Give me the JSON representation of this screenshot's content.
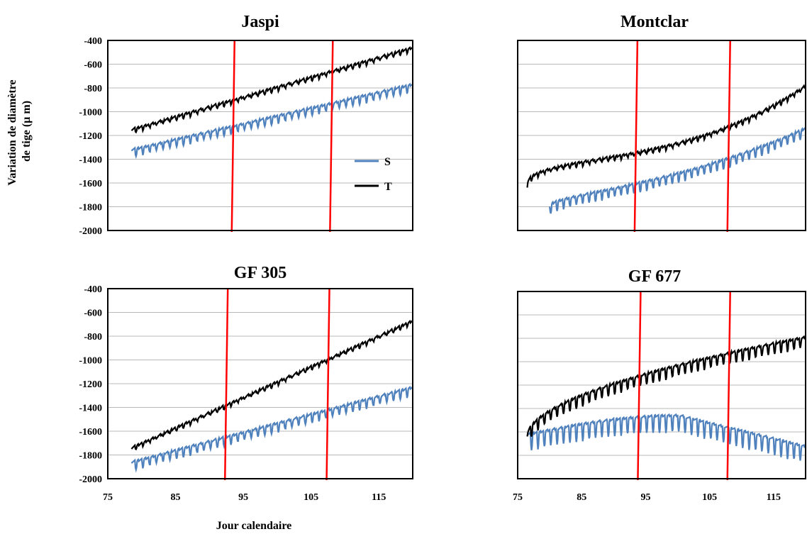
{
  "ylabel": "Variation de diamètre  de tige (µ m)",
  "xlabel": "Jour calendaire",
  "colors": {
    "S": "#4f81bd",
    "T": "#000000",
    "marker": "#ff0000"
  },
  "legend": [
    "S",
    "T"
  ],
  "chart_data": [
    {
      "type": "line",
      "title": "Jaspi",
      "xlim": [
        75,
        120
      ],
      "ylim": [
        -2000,
        -400
      ],
      "yticks": [
        -400,
        -600,
        -800,
        -1000,
        -1200,
        -1400,
        -1600,
        -1800,
        -2000
      ],
      "xticks": [],
      "show_yticks": true,
      "grid": true,
      "legend": "right",
      "vlines": [
        93.5,
        108
      ],
      "series": [
        {
          "name": "S",
          "start": [
            78.5,
            -1320
          ],
          "end": [
            120,
            -770
          ],
          "amp": 60,
          "bumps": []
        },
        {
          "name": "T",
          "start": [
            78.5,
            -1150
          ],
          "end": [
            120,
            -460
          ],
          "amp": 30,
          "bumps": []
        }
      ]
    },
    {
      "type": "line",
      "title": "Montclar",
      "xlim": [
        75,
        120
      ],
      "ylim": [
        -2000,
        -400
      ],
      "yticks": [
        -400,
        -600,
        -800,
        -1000,
        -1200,
        -1400,
        -1600,
        -1800,
        -2000
      ],
      "xticks": [],
      "show_yticks": false,
      "grid": true,
      "vlines": [
        93.5,
        108
      ],
      "series": [
        {
          "name": "S",
          "start": [
            80,
            -1790
          ],
          "end": [
            120,
            -1140
          ],
          "amp": 75,
          "bumps": []
        },
        {
          "name": "T",
          "start": [
            76.5,
            -1630
          ],
          "end": [
            120,
            -780
          ],
          "amp": 30,
          "bumps": []
        }
      ]
    },
    {
      "type": "line",
      "title": "GF 305",
      "xlim": [
        75,
        120
      ],
      "ylim": [
        -2000,
        -400
      ],
      "yticks": [
        -400,
        -600,
        -800,
        -1000,
        -1200,
        -1400,
        -1600,
        -1800,
        -2000
      ],
      "xticks": [
        75,
        85,
        95,
        105,
        115
      ],
      "show_yticks": true,
      "grid": true,
      "vlines": [
        92.5,
        107.5
      ],
      "series": [
        {
          "name": "S",
          "start": [
            78.5,
            -1860
          ],
          "end": [
            120,
            -1230
          ],
          "amp": 70,
          "bumps": []
        },
        {
          "name": "T",
          "start": [
            78.5,
            -1740
          ],
          "end": [
            120,
            -670
          ],
          "amp": 25,
          "bumps": []
        }
      ]
    },
    {
      "type": "line",
      "title": "GF 677",
      "xlim": [
        75,
        120
      ],
      "ylim": [
        -2000,
        -400
      ],
      "yticks": [
        -400,
        -600,
        -800,
        -1000,
        -1200,
        -1400,
        -1600,
        -1800,
        -2000
      ],
      "xticks": [
        75,
        85,
        95,
        105,
        115
      ],
      "show_yticks": false,
      "grid": true,
      "vlines": [
        94,
        108
      ],
      "series": [
        {
          "name": "S",
          "start": [
            76.5,
            -1840
          ],
          "end": [
            120,
            -1860
          ],
          "amp": 140,
          "bumps": []
        },
        {
          "name": "T",
          "start": [
            76.5,
            -1630
          ],
          "end": [
            120,
            -790
          ],
          "amp": 90,
          "bumps": []
        }
      ]
    }
  ]
}
